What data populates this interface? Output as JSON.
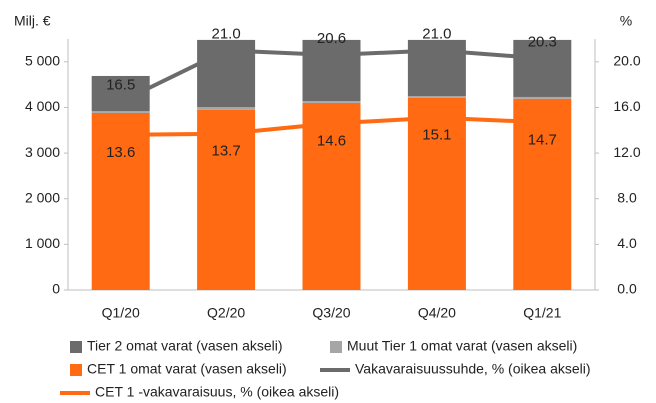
{
  "chart_data": {
    "type": "bar",
    "y_label": "Milj. €",
    "y2_label": "%",
    "categories": [
      "Q1/20",
      "Q2/20",
      "Q3/20",
      "Q4/20",
      "Q1/21"
    ],
    "series": [
      {
        "name": "Tier 2 omat varat (vasen akseli)",
        "type": "bar",
        "color": "#6b6b6b",
        "values": [
          770,
          1470,
          1340,
          1230,
          1250
        ]
      },
      {
        "name": "Muut Tier 1 omat varat (vasen akseli)",
        "type": "bar",
        "color": "#a6a6a6",
        "values": [
          40,
          60,
          40,
          40,
          40
        ]
      },
      {
        "name": "CET 1 omat varat (vasen akseli)",
        "type": "bar",
        "color": "#ff6a13",
        "values": [
          3880,
          3950,
          4100,
          4210,
          4190
        ]
      },
      {
        "name": "Vakavaraisuussuhde, % (oikea akseli)",
        "type": "line",
        "axis": "y2",
        "color": "#6b6b6b",
        "values": [
          16.5,
          21.0,
          20.6,
          21.0,
          20.3
        ],
        "value_labels": [
          "16.5",
          "21.0",
          "20.6",
          "21.0",
          "20.3"
        ]
      },
      {
        "name": "CET 1 -vakavaraisuus, % (oikea akseli)",
        "type": "line",
        "axis": "y2",
        "color": "#ff6a13",
        "values": [
          13.6,
          13.7,
          14.6,
          15.1,
          14.7
        ],
        "value_labels": [
          "13.6",
          "13.7",
          "14.6",
          "15.1",
          "14.7"
        ]
      }
    ],
    "ylim": [
      0,
      5500
    ],
    "yticks": [
      0,
      {
        "value": 1000,
        "label": "1 000"
      },
      {
        "value": 2000,
        "label": "2 000"
      },
      {
        "value": 3000,
        "label": "3 000"
      },
      {
        "value": 4000,
        "label": "4 000"
      },
      {
        "value": 5000,
        "label": "5 000"
      }
    ],
    "y2lim": [
      0,
      22
    ],
    "y2ticks": [
      {
        "value": 0,
        "label": "0.0"
      },
      {
        "value": 4,
        "label": "4.0"
      },
      {
        "value": 8,
        "label": "8.0"
      },
      {
        "value": 12,
        "label": "12.0"
      },
      {
        "value": 16,
        "label": "16.0"
      },
      {
        "value": 20,
        "label": "20.0"
      }
    ],
    "grid": false
  }
}
